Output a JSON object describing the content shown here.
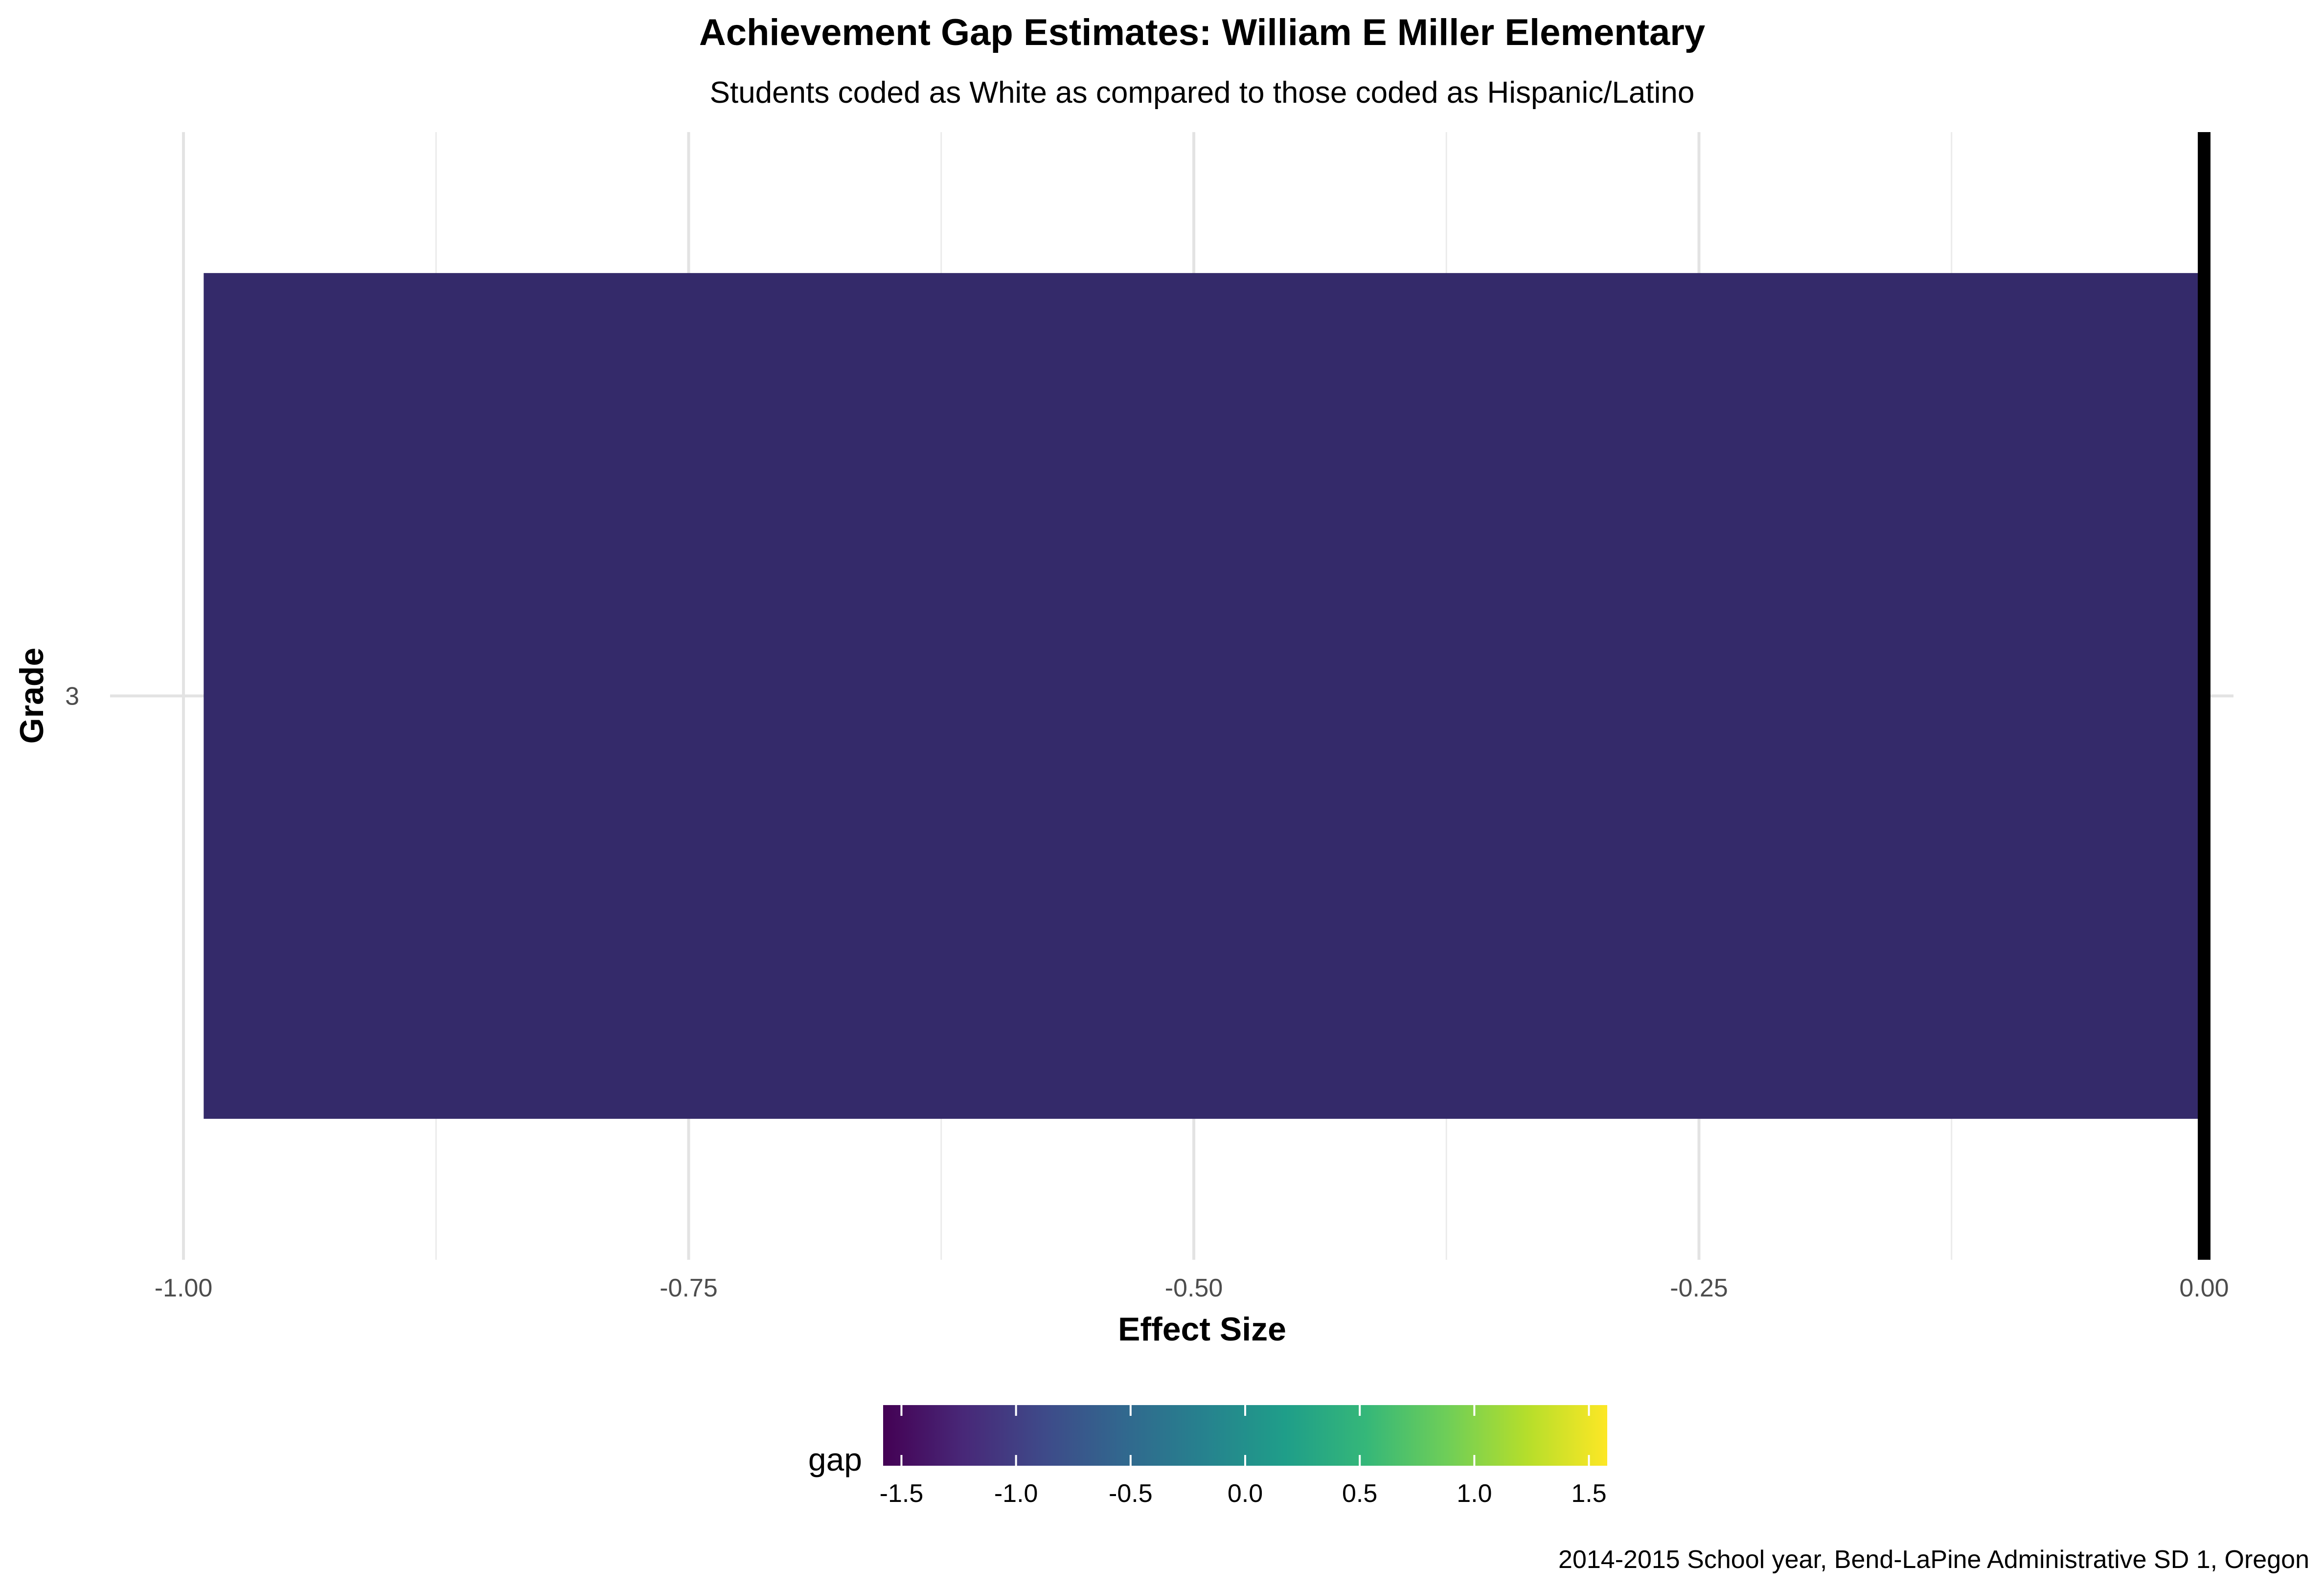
{
  "chart_data": {
    "type": "bar",
    "orientation": "horizontal",
    "title": "Achievement Gap Estimates: William E Miller Elementary",
    "subtitle": "Students coded as White as compared to those coded as Hispanic/Latino",
    "xlabel": "Effect Size",
    "ylabel": "Grade",
    "categories": [
      "3"
    ],
    "values": [
      -0.99
    ],
    "bar_colors": [
      "#342a6a"
    ],
    "xlim": [
      -1.0,
      0.0
    ],
    "x_ticks": [
      -1.0,
      -0.75,
      -0.5,
      -0.25,
      0.0
    ],
    "x_tick_labels": [
      "-1.00",
      "-0.75",
      "-0.50",
      "-0.25",
      "0.00"
    ],
    "reference_line": 0.0,
    "grid": true,
    "legend": {
      "title": "gap",
      "type": "colorbar",
      "placement": "bottom",
      "range": [
        -1.58,
        1.58
      ],
      "ticks": [
        -1.5,
        -1.0,
        -0.5,
        0.0,
        0.5,
        1.0,
        1.5
      ],
      "tick_labels": [
        "-1.5",
        "-1.0",
        "-0.5",
        "0.0",
        "0.5",
        "1.0",
        "1.5"
      ],
      "colormap": [
        "#440154",
        "#482878",
        "#3e4a89",
        "#31688e",
        "#26828e",
        "#1f9e89",
        "#35b779",
        "#6ece58",
        "#b5de2b",
        "#fde725"
      ]
    },
    "caption": "2014-2015 School year, Bend-LaPine Administrative SD 1, Oregon"
  }
}
